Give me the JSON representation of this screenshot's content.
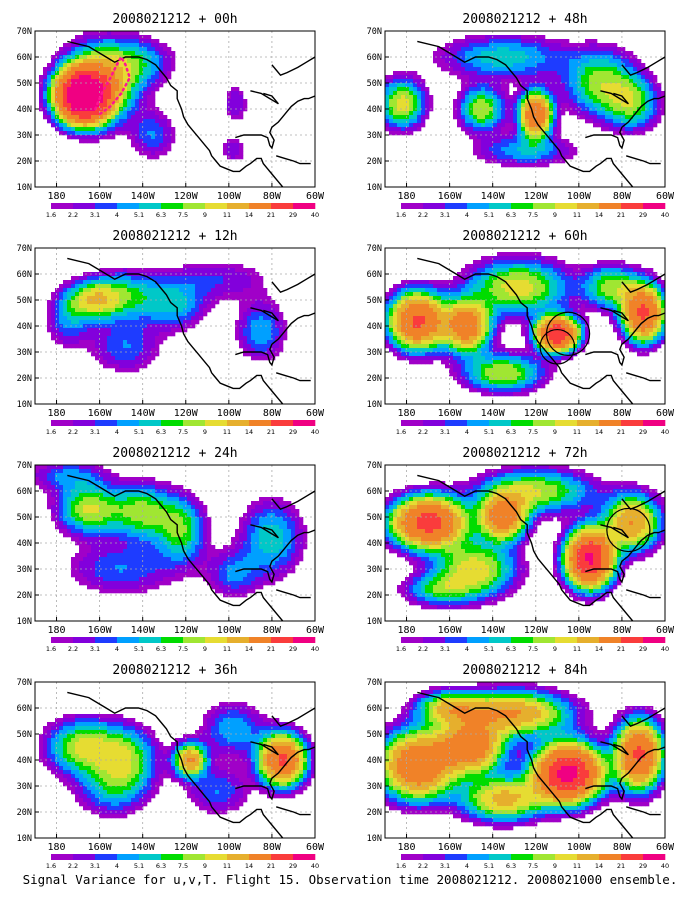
{
  "colors": {
    "scale": [
      "#a000c8",
      "#8200dc",
      "#1e3cff",
      "#00a0ff",
      "#00c8c8",
      "#00dc00",
      "#a0e632",
      "#e6dc32",
      "#e6af2d",
      "#f08228",
      "#fa3c3c",
      "#f00082"
    ],
    "land": "#000000",
    "grid": "#aaaaaa"
  },
  "figure": {
    "caption": "Signal Variance for u,v,T. Flight 15. Observation time 2008021212. 2008021000 ensemble."
  },
  "chart_data": [
    {
      "type": "heatmap",
      "title": "2008021212 + 00h",
      "lead_hours": 0,
      "x_ticks": [
        "180",
        "160W",
        "140W",
        "120W",
        "100W",
        "80W",
        "60W"
      ],
      "y_ticks": [
        "70N",
        "60N",
        "50N",
        "40N",
        "30N",
        "20N",
        "10N"
      ],
      "xlim_lon": [
        170,
        300
      ],
      "ylim_lat": [
        10,
        70
      ],
      "legend_levels": [
        "1.6",
        "2.2",
        "3.1",
        "4",
        "5.1",
        "6.3",
        "7.5",
        "9",
        "11",
        "14",
        "21",
        "29",
        "40"
      ],
      "grid": true,
      "blobs": [
        {
          "lon": 192,
          "lat": 45,
          "amp": 40,
          "rx": 11,
          "ry": 9
        },
        {
          "lon": 200,
          "lat": 50,
          "amp": 12,
          "rx": 16,
          "ry": 14
        },
        {
          "lon": 218,
          "lat": 58,
          "amp": 5,
          "rx": 16,
          "ry": 9
        },
        {
          "lon": 225,
          "lat": 30,
          "amp": 4,
          "rx": 10,
          "ry": 9
        },
        {
          "lon": 263,
          "lat": 42,
          "amp": 3,
          "rx": 6,
          "ry": 8
        },
        {
          "lon": 262,
          "lat": 24,
          "amp": 3,
          "rx": 6,
          "ry": 5
        }
      ],
      "flight_track": [
        [
          198,
          40
        ],
        [
          201,
          46
        ],
        [
          205,
          52
        ],
        [
          208,
          57
        ],
        [
          210,
          60
        ],
        [
          212,
          57
        ],
        [
          214,
          52
        ],
        [
          210,
          46
        ],
        [
          205,
          41
        ],
        [
          200,
          38
        ]
      ],
      "circles": []
    },
    {
      "type": "heatmap",
      "title": "2008021212 + 12h",
      "lead_hours": 12,
      "x_ticks": [
        "180",
        "160W",
        "140W",
        "120W",
        "100W",
        "80W",
        "60W"
      ],
      "y_ticks": [
        "70N",
        "60N",
        "50N",
        "40N",
        "30N",
        "20N",
        "10N"
      ],
      "xlim_lon": [
        170,
        300
      ],
      "ylim_lat": [
        10,
        70
      ],
      "legend_levels": [
        "1.6",
        "2.2",
        "3.1",
        "4",
        "5.1",
        "6.3",
        "7.5",
        "9",
        "11",
        "14",
        "21",
        "29",
        "40"
      ],
      "grid": true,
      "blobs": [
        {
          "lon": 197,
          "lat": 50,
          "amp": 9,
          "rx": 12,
          "ry": 7
        },
        {
          "lon": 212,
          "lat": 52,
          "amp": 6,
          "rx": 16,
          "ry": 9
        },
        {
          "lon": 235,
          "lat": 48,
          "amp": 5,
          "rx": 14,
          "ry": 9
        },
        {
          "lon": 212,
          "lat": 32,
          "amp": 4,
          "rx": 16,
          "ry": 10
        },
        {
          "lon": 275,
          "lat": 38,
          "amp": 5,
          "rx": 11,
          "ry": 11
        },
        {
          "lon": 255,
          "lat": 58,
          "amp": 3,
          "rx": 24,
          "ry": 8
        },
        {
          "lon": 185,
          "lat": 42,
          "amp": 4,
          "rx": 10,
          "ry": 10
        }
      ],
      "flight_track": [],
      "circles": []
    },
    {
      "type": "heatmap",
      "title": "2008021212 + 24h",
      "lead_hours": 24,
      "x_ticks": [
        "180",
        "160W",
        "140W",
        "120W",
        "100W",
        "80W",
        "60W"
      ],
      "y_ticks": [
        "70N",
        "60N",
        "50N",
        "40N",
        "30N",
        "20N",
        "10N"
      ],
      "xlim_lon": [
        170,
        300
      ],
      "ylim_lat": [
        10,
        70
      ],
      "legend_levels": [
        "1.6",
        "2.2",
        "3.1",
        "4",
        "5.1",
        "6.3",
        "7.5",
        "9",
        "11",
        "14",
        "21",
        "29",
        "40"
      ],
      "grid": true,
      "blobs": [
        {
          "lon": 195,
          "lat": 53,
          "amp": 9,
          "rx": 14,
          "ry": 9
        },
        {
          "lon": 220,
          "lat": 52,
          "amp": 8,
          "rx": 14,
          "ry": 10
        },
        {
          "lon": 238,
          "lat": 45,
          "amp": 7,
          "rx": 11,
          "ry": 12
        },
        {
          "lon": 280,
          "lat": 42,
          "amp": 6,
          "rx": 14,
          "ry": 14
        },
        {
          "lon": 210,
          "lat": 30,
          "amp": 4,
          "rx": 25,
          "ry": 10
        },
        {
          "lon": 262,
          "lat": 28,
          "amp": 4,
          "rx": 12,
          "ry": 9
        },
        {
          "lon": 185,
          "lat": 66,
          "amp": 4,
          "rx": 18,
          "ry": 6
        }
      ],
      "flight_track": [],
      "circles": []
    },
    {
      "type": "heatmap",
      "title": "2008021212 + 36h",
      "lead_hours": 36,
      "x_ticks": [
        "180",
        "160W",
        "140W",
        "120W",
        "100W",
        "80W",
        "60W"
      ],
      "y_ticks": [
        "70N",
        "60N",
        "50N",
        "40N",
        "30N",
        "20N",
        "10N"
      ],
      "xlim_lon": [
        170,
        300
      ],
      "ylim_lat": [
        10,
        70
      ],
      "legend_levels": [
        "1.6",
        "2.2",
        "3.1",
        "4",
        "5.1",
        "6.3",
        "7.5",
        "9",
        "11",
        "14",
        "21",
        "29",
        "40"
      ],
      "grid": true,
      "blobs": [
        {
          "lon": 192,
          "lat": 45,
          "amp": 9,
          "rx": 16,
          "ry": 10
        },
        {
          "lon": 212,
          "lat": 40,
          "amp": 8,
          "rx": 14,
          "ry": 12
        },
        {
          "lon": 242,
          "lat": 40,
          "amp": 14,
          "rx": 7,
          "ry": 6
        },
        {
          "lon": 285,
          "lat": 40,
          "amp": 22,
          "rx": 10,
          "ry": 9
        },
        {
          "lon": 262,
          "lat": 52,
          "amp": 5,
          "rx": 14,
          "ry": 10
        },
        {
          "lon": 205,
          "lat": 28,
          "amp": 4,
          "rx": 16,
          "ry": 10
        },
        {
          "lon": 255,
          "lat": 28,
          "amp": 4,
          "rx": 14,
          "ry": 9
        }
      ],
      "flight_track": [],
      "circles": []
    },
    {
      "type": "heatmap",
      "title": "2008021212 + 48h",
      "lead_hours": 48,
      "x_ticks": [
        "180",
        "160W",
        "140W",
        "120W",
        "100W",
        "80W",
        "60W"
      ],
      "y_ticks": [
        "70N",
        "60N",
        "50N",
        "40N",
        "30N",
        "20N",
        "10N"
      ],
      "xlim_lon": [
        170,
        300
      ],
      "ylim_lat": [
        10,
        70
      ],
      "legend_levels": [
        "1.6",
        "2.2",
        "3.1",
        "4",
        "5.1",
        "6.3",
        "7.5",
        "9",
        "11",
        "14",
        "21",
        "29",
        "40"
      ],
      "grid": true,
      "blobs": [
        {
          "lon": 178,
          "lat": 42,
          "amp": 10,
          "rx": 10,
          "ry": 9
        },
        {
          "lon": 215,
          "lat": 40,
          "amp": 9,
          "rx": 10,
          "ry": 8
        },
        {
          "lon": 240,
          "lat": 38,
          "amp": 20,
          "rx": 7,
          "ry": 8
        },
        {
          "lon": 270,
          "lat": 50,
          "amp": 8,
          "rx": 16,
          "ry": 12
        },
        {
          "lon": 285,
          "lat": 42,
          "amp": 7,
          "rx": 12,
          "ry": 10
        },
        {
          "lon": 225,
          "lat": 60,
          "amp": 6,
          "rx": 28,
          "ry": 8
        },
        {
          "lon": 235,
          "lat": 24,
          "amp": 5,
          "rx": 22,
          "ry": 6
        }
      ],
      "flight_track": [],
      "circles": []
    },
    {
      "type": "heatmap",
      "title": "2008021212 + 60h",
      "lead_hours": 60,
      "x_ticks": [
        "180",
        "160W",
        "140W",
        "120W",
        "100W",
        "80W",
        "60W"
      ],
      "y_ticks": [
        "70N",
        "60N",
        "50N",
        "40N",
        "30N",
        "20N",
        "10N"
      ],
      "xlim_lon": [
        170,
        300
      ],
      "ylim_lat": [
        10,
        70
      ],
      "legend_levels": [
        "1.6",
        "2.2",
        "3.1",
        "4",
        "5.1",
        "6.3",
        "7.5",
        "9",
        "11",
        "14",
        "21",
        "29",
        "40"
      ],
      "grid": true,
      "blobs": [
        {
          "lon": 185,
          "lat": 42,
          "amp": 22,
          "rx": 12,
          "ry": 10
        },
        {
          "lon": 208,
          "lat": 40,
          "amp": 18,
          "rx": 10,
          "ry": 9
        },
        {
          "lon": 250,
          "lat": 37,
          "amp": 28,
          "rx": 9,
          "ry": 6
        },
        {
          "lon": 232,
          "lat": 55,
          "amp": 10,
          "rx": 22,
          "ry": 10
        },
        {
          "lon": 290,
          "lat": 45,
          "amp": 22,
          "rx": 9,
          "ry": 10
        },
        {
          "lon": 225,
          "lat": 22,
          "amp": 9,
          "rx": 18,
          "ry": 7
        },
        {
          "lon": 275,
          "lat": 55,
          "amp": 8,
          "rx": 12,
          "ry": 8
        }
      ],
      "flight_track": [],
      "circles": [
        {
          "lon": 255,
          "lat": 37,
          "r_deg": 10
        },
        {
          "lon": 250,
          "lat": 32,
          "r_deg": 8
        }
      ]
    },
    {
      "type": "heatmap",
      "title": "2008021212 + 72h",
      "lead_hours": 72,
      "x_ticks": [
        "180",
        "160W",
        "140W",
        "120W",
        "100W",
        "80W",
        "60W"
      ],
      "y_ticks": [
        "70N",
        "60N",
        "50N",
        "40N",
        "30N",
        "20N",
        "10N"
      ],
      "xlim_lon": [
        170,
        300
      ],
      "ylim_lat": [
        10,
        70
      ],
      "legend_levels": [
        "1.6",
        "2.2",
        "3.1",
        "4",
        "5.1",
        "6.3",
        "7.5",
        "9",
        "11",
        "14",
        "21",
        "29",
        "40"
      ],
      "grid": true,
      "blobs": [
        {
          "lon": 190,
          "lat": 48,
          "amp": 24,
          "rx": 16,
          "ry": 9
        },
        {
          "lon": 225,
          "lat": 50,
          "amp": 18,
          "rx": 10,
          "ry": 8
        },
        {
          "lon": 265,
          "lat": 34,
          "amp": 30,
          "rx": 10,
          "ry": 10
        },
        {
          "lon": 285,
          "lat": 48,
          "amp": 14,
          "rx": 12,
          "ry": 10
        },
        {
          "lon": 212,
          "lat": 30,
          "amp": 10,
          "rx": 18,
          "ry": 10
        },
        {
          "lon": 240,
          "lat": 60,
          "amp": 9,
          "rx": 25,
          "ry": 8
        },
        {
          "lon": 195,
          "lat": 22,
          "amp": 6,
          "rx": 16,
          "ry": 6
        }
      ],
      "flight_track": [],
      "circles": [
        {
          "lon": 283,
          "lat": 45,
          "r_deg": 10
        }
      ]
    },
    {
      "type": "heatmap",
      "title": "2008021212 + 84h",
      "lead_hours": 84,
      "x_ticks": [
        "180",
        "160W",
        "140W",
        "120W",
        "100W",
        "80W",
        "60W"
      ],
      "y_ticks": [
        "70N",
        "60N",
        "50N",
        "40N",
        "30N",
        "20N",
        "10N"
      ],
      "xlim_lon": [
        170,
        300
      ],
      "ylim_lat": [
        10,
        70
      ],
      "legend_levels": [
        "1.6",
        "2.2",
        "3.1",
        "4",
        "5.1",
        "6.3",
        "7.5",
        "9",
        "11",
        "14",
        "21",
        "29",
        "40"
      ],
      "grid": true,
      "blobs": [
        {
          "lon": 185,
          "lat": 38,
          "amp": 20,
          "rx": 16,
          "ry": 12
        },
        {
          "lon": 210,
          "lat": 45,
          "amp": 18,
          "rx": 14,
          "ry": 9
        },
        {
          "lon": 255,
          "lat": 35,
          "amp": 32,
          "rx": 14,
          "ry": 10
        },
        {
          "lon": 288,
          "lat": 42,
          "amp": 22,
          "rx": 10,
          "ry": 12
        },
        {
          "lon": 230,
          "lat": 58,
          "amp": 14,
          "rx": 24,
          "ry": 8
        },
        {
          "lon": 225,
          "lat": 25,
          "amp": 12,
          "rx": 18,
          "ry": 8
        },
        {
          "lon": 200,
          "lat": 60,
          "amp": 10,
          "rx": 14,
          "ry": 6
        }
      ],
      "flight_track": [],
      "circles": []
    }
  ]
}
